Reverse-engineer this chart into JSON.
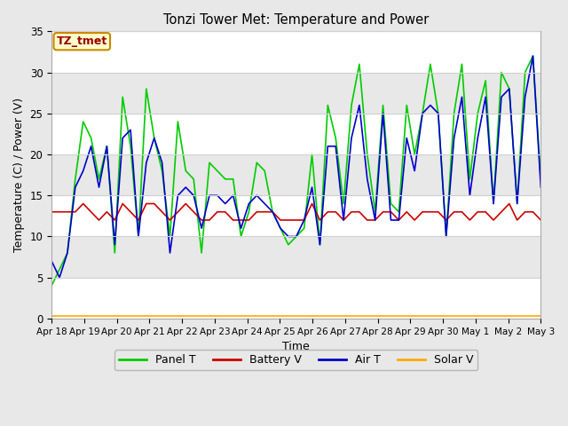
{
  "title": "Tonzi Tower Met: Temperature and Power",
  "xlabel": "Time",
  "ylabel": "Temperature (C) / Power (V)",
  "ylim": [
    0,
    35
  ],
  "figure_bg": "#e8e8e8",
  "plot_bg": "#ffffff",
  "annotation_label": "TZ_tmet",
  "annotation_box_color": "#ffffcc",
  "annotation_box_edge": "#cc8800",
  "series_order": [
    "panel_t",
    "battery_v",
    "air_t",
    "solar_v"
  ],
  "series": {
    "panel_t": {
      "color": "#00cc00",
      "label": "Panel T",
      "linewidth": 1.2,
      "values": [
        4,
        6,
        8,
        17,
        24,
        22,
        17,
        21,
        8,
        27,
        21,
        10,
        28,
        22,
        18,
        10,
        24,
        18,
        17,
        8,
        19,
        18,
        17,
        17,
        10,
        13,
        19,
        18,
        13,
        11,
        9,
        10,
        11,
        20,
        9,
        26,
        22,
        14,
        26,
        31,
        20,
        13,
        26,
        14,
        13,
        26,
        20,
        25,
        31,
        25,
        10,
        25,
        31,
        17,
        25,
        29,
        14,
        30,
        28,
        14,
        30,
        32,
        17
      ]
    },
    "battery_v": {
      "color": "#cc0000",
      "label": "Battery V",
      "linewidth": 1.2,
      "values": [
        13,
        13,
        13,
        13,
        14,
        13,
        12,
        13,
        12,
        14,
        13,
        12,
        14,
        14,
        13,
        12,
        13,
        14,
        13,
        12,
        12,
        13,
        13,
        12,
        12,
        12,
        13,
        13,
        13,
        12,
        12,
        12,
        12,
        14,
        12,
        13,
        13,
        12,
        13,
        13,
        12,
        12,
        13,
        13,
        12,
        13,
        12,
        13,
        13,
        13,
        12,
        13,
        13,
        12,
        13,
        13,
        12,
        13,
        14,
        12,
        13,
        13,
        12
      ]
    },
    "air_t": {
      "color": "#0000cc",
      "label": "Air T",
      "linewidth": 1.2,
      "values": [
        7,
        5,
        8,
        16,
        18,
        21,
        16,
        21,
        9,
        22,
        23,
        10,
        19,
        22,
        19,
        8,
        15,
        16,
        15,
        11,
        15,
        15,
        14,
        15,
        11,
        14,
        15,
        14,
        13,
        11,
        10,
        10,
        12,
        16,
        9,
        21,
        21,
        12,
        22,
        26,
        17,
        12,
        25,
        12,
        12,
        22,
        18,
        25,
        26,
        25,
        10,
        22,
        27,
        15,
        22,
        27,
        14,
        27,
        28,
        14,
        27,
        32,
        16
      ]
    },
    "solar_v": {
      "color": "#ffaa00",
      "label": "Solar V",
      "linewidth": 1.2,
      "values": [
        0.3,
        0.3,
        0.3,
        0.3,
        0.3,
        0.3,
        0.3,
        0.3,
        0.3,
        0.3,
        0.3,
        0.3,
        0.3,
        0.3,
        0.3,
        0.3,
        0.3,
        0.3,
        0.3,
        0.3,
        0.3,
        0.3,
        0.3,
        0.3,
        0.3,
        0.3,
        0.3,
        0.3,
        0.3,
        0.3,
        0.3,
        0.3,
        0.3,
        0.3,
        0.3,
        0.3,
        0.3,
        0.3,
        0.3,
        0.3,
        0.3,
        0.3,
        0.3,
        0.3,
        0.3,
        0.3,
        0.3,
        0.3,
        0.3,
        0.3,
        0.3,
        0.3,
        0.3,
        0.3,
        0.3,
        0.3,
        0.3,
        0.3,
        0.3,
        0.3,
        0.3,
        0.3,
        0.3
      ]
    }
  },
  "xticks_labels": [
    "Apr 18",
    "Apr 19",
    "Apr 20",
    "Apr 21",
    "Apr 22",
    "Apr 23",
    "Apr 24",
    "Apr 25",
    "Apr 26",
    "Apr 27",
    "Apr 28",
    "Apr 29",
    "Apr 30",
    "May 1",
    "May 2",
    "May 3"
  ],
  "yticks": [
    0,
    5,
    10,
    15,
    20,
    25,
    30,
    35
  ],
  "grid_color": "#d0d0d0",
  "legend_items": [
    {
      "label": "Panel T",
      "color": "#00cc00"
    },
    {
      "label": "Battery V",
      "color": "#cc0000"
    },
    {
      "label": "Air T",
      "color": "#0000cc"
    },
    {
      "label": "Solar V",
      "color": "#ffaa00"
    }
  ],
  "alt_row_color": "#e8e8e8"
}
